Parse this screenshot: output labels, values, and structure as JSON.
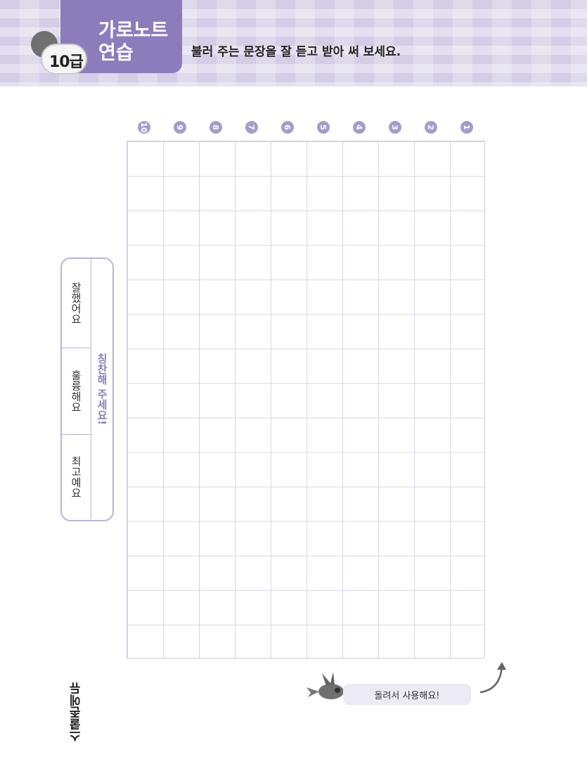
{
  "header": {
    "title_line1": "가로노트",
    "title_line2": "연습",
    "level": "10급",
    "instruction": "불러 주는 문장을 잘 듣고 받아 써 보세요."
  },
  "grid": {
    "columns": [
      "10",
      "9",
      "8",
      "7",
      "6",
      "5",
      "4",
      "3",
      "2",
      "1"
    ],
    "rows": 15
  },
  "praise": {
    "title": "칭찬해 주세요!",
    "items": [
      "잘했어요",
      "훌륭해요",
      "최고예요"
    ]
  },
  "footer": {
    "bubble": "돌려서 사용해요!",
    "logo": "스쿨존에듀"
  },
  "colors": {
    "accent": "#8b7dbb",
    "grid": "#d8d4e6"
  }
}
